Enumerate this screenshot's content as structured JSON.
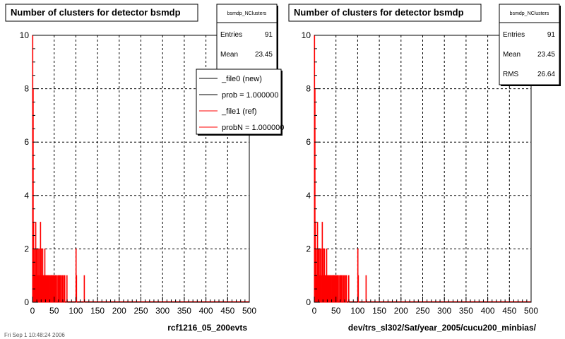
{
  "footer": "Fri Sep 1 10:48:24 2006",
  "chart_data": [
    {
      "type": "bar",
      "title": "Number of clusters for detector bsmdp",
      "xlabel": "rcf1216_05_200evts",
      "xlim": [
        0,
        500
      ],
      "ylim": [
        0,
        10
      ],
      "xticks": [
        "0",
        "50",
        "100",
        "150",
        "200",
        "250",
        "300",
        "350",
        "400",
        "450",
        "500"
      ],
      "yticks": [
        "0",
        "2",
        "4",
        "6",
        "8",
        "10"
      ],
      "grid": true,
      "stats": {
        "name": "bsmdp_NClusters",
        "rows": [
          {
            "label": "Entries",
            "value": "91"
          },
          {
            "label": "Mean",
            "value": "23.45"
          }
        ]
      },
      "legend": {
        "placement": "top-right",
        "entries": [
          {
            "label": "_file0 (new)",
            "color": "#000000"
          },
          {
            "label": "prob = 1.000000",
            "color": "#000000"
          },
          {
            "label": "_file1 (ref)",
            "color": "#ff0000"
          },
          {
            "label": "probN = 1.000000",
            "color": "#ff0000"
          }
        ]
      },
      "series": [
        {
          "color": "#ff0000",
          "x": [
            1,
            2,
            3,
            4,
            5,
            6,
            7,
            8,
            9,
            10,
            11,
            12,
            13,
            14,
            15,
            16,
            17,
            18,
            19,
            20,
            21,
            22,
            23,
            24,
            25,
            26,
            27,
            28,
            29,
            30,
            31,
            32,
            33,
            34,
            35,
            36,
            37,
            38,
            39,
            40,
            41,
            42,
            43,
            44,
            45,
            46,
            47,
            48,
            49,
            50,
            51,
            52,
            53,
            54,
            55,
            56,
            57,
            58,
            59,
            60,
            61,
            62,
            63,
            64,
            65,
            66,
            67,
            68,
            69,
            70,
            71,
            72,
            73,
            74,
            75,
            76,
            77,
            78,
            79,
            80,
            81,
            82,
            83,
            84,
            85,
            86,
            87,
            88,
            89,
            90,
            91,
            92,
            93,
            94,
            95,
            96,
            97,
            98,
            99,
            100,
            101,
            102,
            103,
            104,
            105,
            106,
            107,
            108,
            109,
            110,
            111,
            112,
            113,
            114,
            115,
            116,
            117,
            118,
            119,
            120
          ],
          "values": [
            10,
            8,
            3,
            1,
            2,
            1,
            1,
            3,
            1,
            2,
            1,
            2,
            0,
            1,
            2,
            2,
            1,
            0,
            3,
            1,
            2,
            1,
            1,
            2,
            0,
            1,
            1,
            0,
            2,
            1,
            1,
            0,
            1,
            1,
            1,
            0,
            1,
            1,
            1,
            0,
            1,
            0,
            1,
            1,
            1,
            1,
            0,
            1,
            1,
            1,
            0,
            1,
            1,
            0,
            1,
            1,
            0,
            0,
            1,
            0,
            1,
            1,
            0,
            1,
            1,
            0,
            0,
            1,
            0,
            1,
            0,
            0,
            1,
            0,
            1,
            0,
            0,
            0,
            0,
            1,
            0,
            0,
            0,
            0,
            0,
            0,
            0,
            0,
            0,
            0,
            0,
            0,
            0,
            0,
            0,
            0,
            0,
            0,
            0,
            0,
            2,
            1,
            0,
            0,
            0,
            0,
            0,
            0,
            0,
            0,
            0,
            0,
            0,
            0,
            0,
            0,
            0,
            0,
            0,
            1
          ]
        }
      ]
    },
    {
      "type": "bar",
      "title": "Number of clusters for detector bsmdp",
      "xlabel": "dev/trs_sl302/Sat/year_2005/cucu200_minbias/",
      "xlim": [
        0,
        500
      ],
      "ylim": [
        0,
        10
      ],
      "xticks": [
        "0",
        "50",
        "100",
        "150",
        "200",
        "250",
        "300",
        "350",
        "400",
        "450",
        "500"
      ],
      "yticks": [
        "0",
        "2",
        "4",
        "6",
        "8",
        "10"
      ],
      "grid": true,
      "stats": {
        "name": "bsmdp_NClusters",
        "rows": [
          {
            "label": "Entries",
            "value": "91"
          },
          {
            "label": "Mean",
            "value": "23.45"
          },
          {
            "label": "RMS",
            "value": "26.64"
          }
        ]
      },
      "series": [
        {
          "color": "#ff0000",
          "x": [
            1,
            2,
            3,
            4,
            5,
            6,
            7,
            8,
            9,
            10,
            11,
            12,
            13,
            14,
            15,
            16,
            17,
            18,
            19,
            20,
            21,
            22,
            23,
            24,
            25,
            26,
            27,
            28,
            29,
            30,
            31,
            32,
            33,
            34,
            35,
            36,
            37,
            38,
            39,
            40,
            41,
            42,
            43,
            44,
            45,
            46,
            47,
            48,
            49,
            50,
            51,
            52,
            53,
            54,
            55,
            56,
            57,
            58,
            59,
            60,
            61,
            62,
            63,
            64,
            65,
            66,
            67,
            68,
            69,
            70,
            71,
            72,
            73,
            74,
            75,
            76,
            77,
            78,
            79,
            80,
            81,
            82,
            83,
            84,
            85,
            86,
            87,
            88,
            89,
            90,
            91,
            92,
            93,
            94,
            95,
            96,
            97,
            98,
            99,
            100,
            101,
            102,
            103,
            104,
            105,
            106,
            107,
            108,
            109,
            110,
            111,
            112,
            113,
            114,
            115,
            116,
            117,
            118,
            119,
            120
          ],
          "values": [
            10,
            8,
            3,
            1,
            2,
            1,
            1,
            3,
            1,
            2,
            1,
            2,
            0,
            1,
            2,
            2,
            1,
            0,
            3,
            1,
            2,
            1,
            1,
            2,
            0,
            1,
            1,
            0,
            2,
            1,
            1,
            0,
            1,
            1,
            1,
            0,
            1,
            1,
            1,
            0,
            1,
            0,
            1,
            1,
            1,
            1,
            0,
            1,
            1,
            1,
            0,
            1,
            1,
            0,
            1,
            1,
            0,
            0,
            1,
            0,
            1,
            1,
            0,
            1,
            1,
            0,
            0,
            1,
            0,
            1,
            0,
            0,
            1,
            0,
            1,
            0,
            0,
            0,
            0,
            1,
            0,
            0,
            0,
            0,
            0,
            0,
            0,
            0,
            0,
            0,
            0,
            0,
            0,
            0,
            0,
            0,
            0,
            0,
            0,
            0,
            2,
            1,
            0,
            0,
            0,
            0,
            0,
            0,
            0,
            0,
            0,
            0,
            0,
            0,
            0,
            0,
            0,
            0,
            0,
            1
          ]
        }
      ]
    }
  ]
}
